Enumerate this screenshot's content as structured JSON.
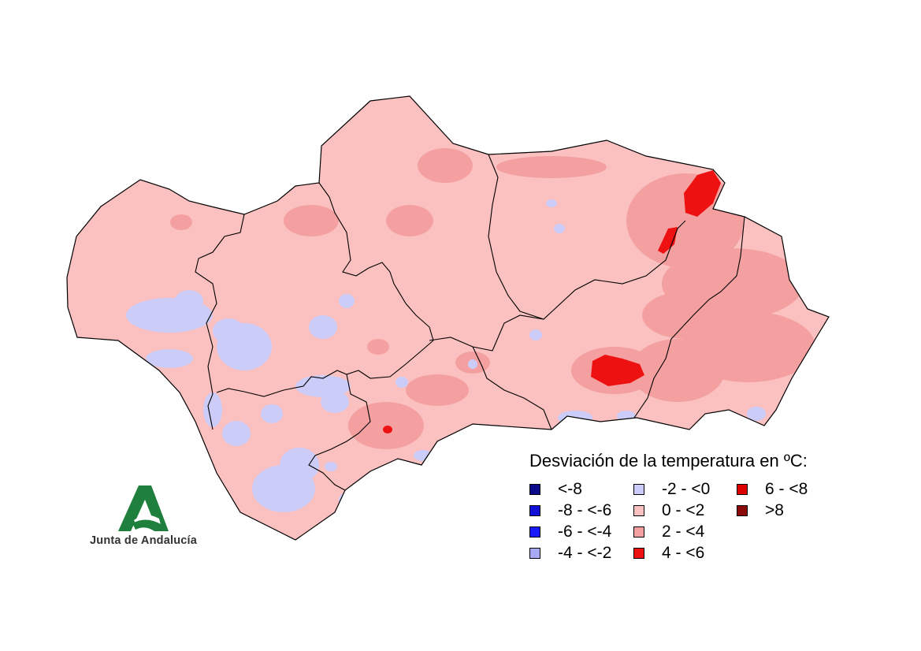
{
  "legend": {
    "title": "Desviación de la temperatura en ºC:",
    "items": [
      {
        "label": "<-8",
        "color": "#0a0a8a"
      },
      {
        "label": "-8 - <-6",
        "color": "#1010d8"
      },
      {
        "label": "-6 - <-4",
        "color": "#1a1aff"
      },
      {
        "label": "-4 - <-2",
        "color": "#aaaaf4"
      },
      {
        "label": "-2 - <0",
        "color": "#ccccf8"
      },
      {
        "label": "0 - <2",
        "color": "#fbc0c0"
      },
      {
        "label": "2 - <4",
        "color": "#f4a0a0"
      },
      {
        "label": "4 - <6",
        "color": "#ee1111"
      },
      {
        "label": "6 - <8",
        "color": "#dd0000"
      },
      {
        "label": ">8",
        "color": "#8b0a0a"
      }
    ]
  },
  "logo": {
    "name": "Junta de Andalucía",
    "color": "#1f7f3d"
  },
  "map": {
    "base_color": "#fbc0c0",
    "border_color": "#000000"
  }
}
